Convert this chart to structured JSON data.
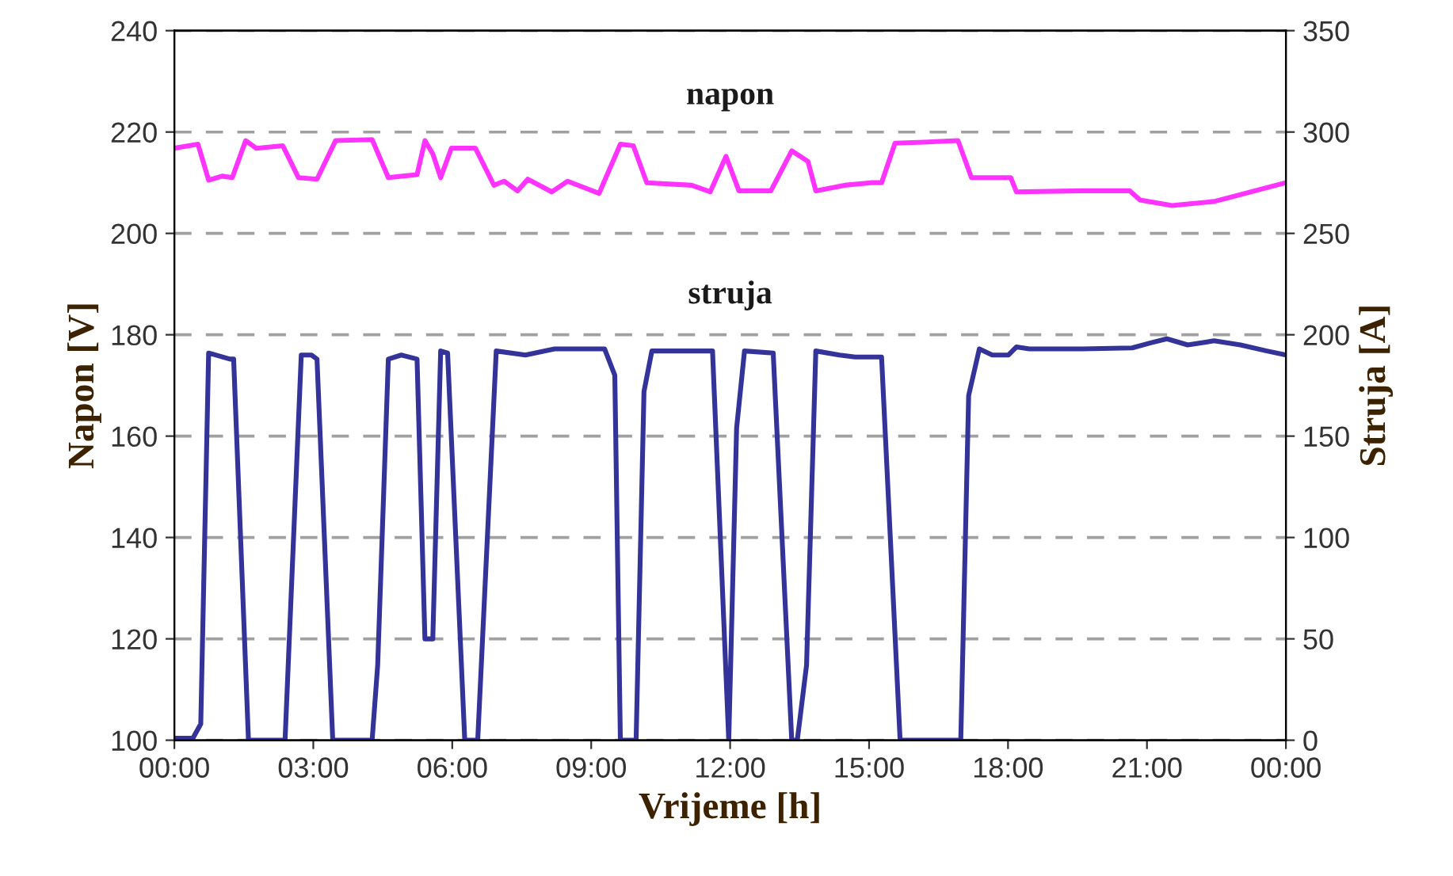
{
  "chart_data": {
    "type": "line",
    "xlabel": "Vrijeme [h]",
    "ylabel": "Napon [V]",
    "y2label": "Struja [A]",
    "xlim": [
      0,
      24
    ],
    "xticks": [
      {
        "value": 0,
        "label": "00:00"
      },
      {
        "value": 3,
        "label": "03:00"
      },
      {
        "value": 6,
        "label": "06:00"
      },
      {
        "value": 9,
        "label": "09:00"
      },
      {
        "value": 12,
        "label": "12:00"
      },
      {
        "value": 15,
        "label": "15:00"
      },
      {
        "value": 18,
        "label": "18:00"
      },
      {
        "value": 21,
        "label": "21:00"
      },
      {
        "value": 24,
        "label": "00:00"
      }
    ],
    "ylim": [
      100,
      240
    ],
    "yticks": [
      100,
      120,
      140,
      160,
      180,
      200,
      220,
      240
    ],
    "y2lim": [
      0,
      350
    ],
    "y2ticks": [
      0,
      50,
      100,
      150,
      200,
      250,
      300,
      350
    ],
    "grid": "y",
    "legend": false,
    "marker": "none",
    "line_style": "solid",
    "series": [
      {
        "name": "napon",
        "color": "#ff33ff",
        "x": [
          0,
          0.51,
          0.74,
          1.03,
          1.25,
          1.54,
          1.77,
          2.34,
          2.68,
          3.08,
          3.48,
          4.27,
          4.62,
          5.24,
          5.41,
          5.58,
          5.75,
          5.98,
          6.5,
          6.9,
          7.12,
          7.41,
          7.63,
          8.15,
          8.49,
          9.17,
          9.63,
          9.91,
          10.2,
          11.17,
          11.57,
          11.91,
          12.19,
          12.88,
          13.33,
          13.68,
          13.85,
          14.47,
          15.04,
          15.27,
          15.56,
          16.18,
          16.92,
          17.21,
          18.06,
          18.18,
          19.6,
          20.63,
          20.85,
          21.54,
          22.45,
          23.99
        ],
        "values": [
          216.8,
          217.6,
          210.5,
          211.3,
          211,
          218.3,
          216.8,
          217.3,
          211,
          210.7,
          218.3,
          218.5,
          211,
          211.6,
          218.3,
          215.7,
          211,
          216.8,
          216.8,
          209.5,
          210.3,
          208.4,
          210.7,
          208.2,
          210.3,
          207.9,
          217.6,
          217.3,
          210,
          209.5,
          208.2,
          215.2,
          208.4,
          208.4,
          216.3,
          214.2,
          208.4,
          209.5,
          210,
          210,
          217.8,
          218,
          218.3,
          211,
          211,
          208.2,
          208.4,
          208.4,
          206.6,
          205.5,
          206.3,
          210
        ]
      },
      {
        "name": "struja",
        "color": "#333399",
        "axis": "y2",
        "x": [
          0,
          0.4,
          0.57,
          0.74,
          1.2,
          1.28,
          1.6,
          2.39,
          2.74,
          2.96,
          3.08,
          3.42,
          4.27,
          4.39,
          4.62,
          4.9,
          5.24,
          5.41,
          5.58,
          5.75,
          5.9,
          6.27,
          6.55,
          6.95,
          7.58,
          8.21,
          8.78,
          9.29,
          9.51,
          9.63,
          9.97,
          10.14,
          10.31,
          11.62,
          11.97,
          12.14,
          12.31,
          12.93,
          13.33,
          13.45,
          13.65,
          13.85,
          14.36,
          14.7,
          15.27,
          15.67,
          16.98,
          17.15,
          17.38,
          17.66,
          18.01,
          18.18,
          18.46,
          19.6,
          20.68,
          21.08,
          21.43,
          21.88,
          22.45,
          23.02,
          23.59,
          24
        ],
        "values": [
          1,
          1,
          8,
          191,
          188,
          188,
          0,
          0,
          190,
          190,
          188,
          0,
          0,
          37,
          188,
          190,
          188,
          50,
          50,
          192,
          191,
          0,
          0,
          192,
          190,
          193,
          193,
          193,
          180,
          0,
          0,
          172,
          192,
          192,
          0,
          154,
          192,
          191,
          0,
          0,
          37,
          192,
          190,
          189,
          189,
          0,
          0,
          170,
          193,
          190,
          190,
          194,
          193,
          193,
          193.5,
          196,
          198,
          195,
          197,
          195,
          192,
          190
        ]
      }
    ]
  }
}
